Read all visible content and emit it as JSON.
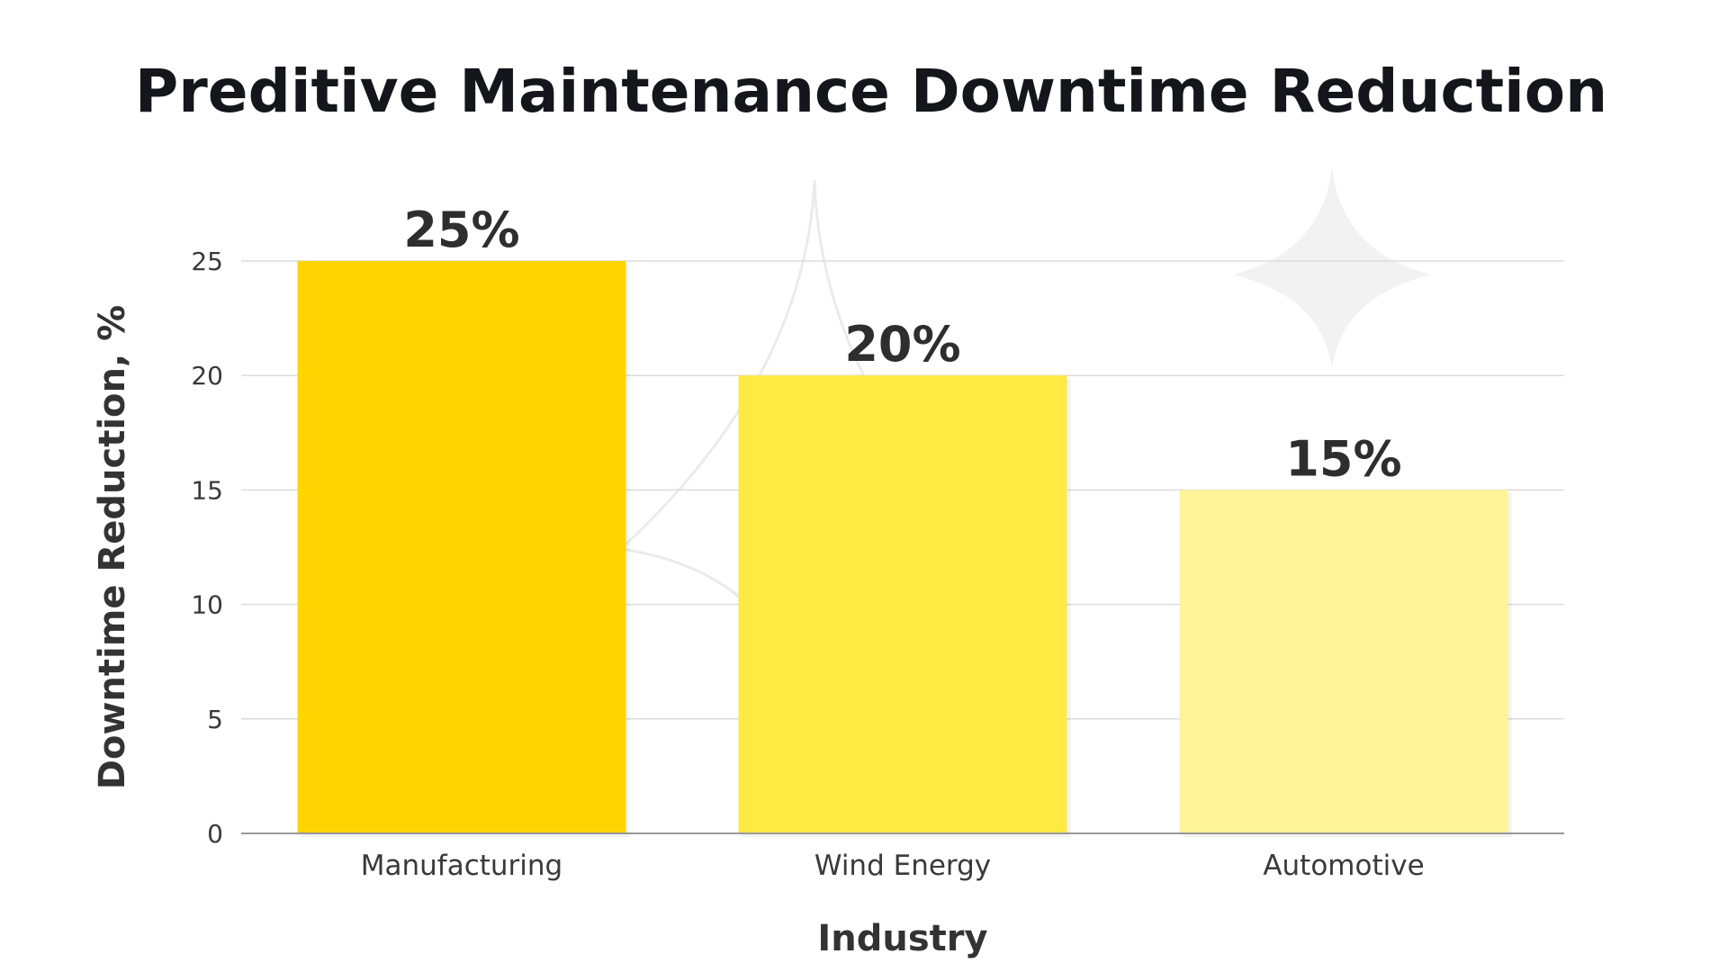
{
  "chart_data": {
    "type": "bar",
    "title": "Preditive Maintenance Downtime Reduction",
    "xlabel": "Industry",
    "ylabel": "Downtime Reduction, %",
    "categories": [
      "Manufacturing",
      "Wind Energy",
      "Automotive"
    ],
    "values": [
      25,
      20,
      15
    ],
    "data_labels": [
      "25%",
      "20%",
      "15%"
    ],
    "bar_colors": [
      "#FFD400",
      "#FFE943",
      "#FFF497"
    ],
    "ylim": [
      0,
      25
    ],
    "yticks": [
      0,
      5,
      10,
      15,
      20,
      25
    ],
    "grid": true,
    "legend": "none"
  }
}
